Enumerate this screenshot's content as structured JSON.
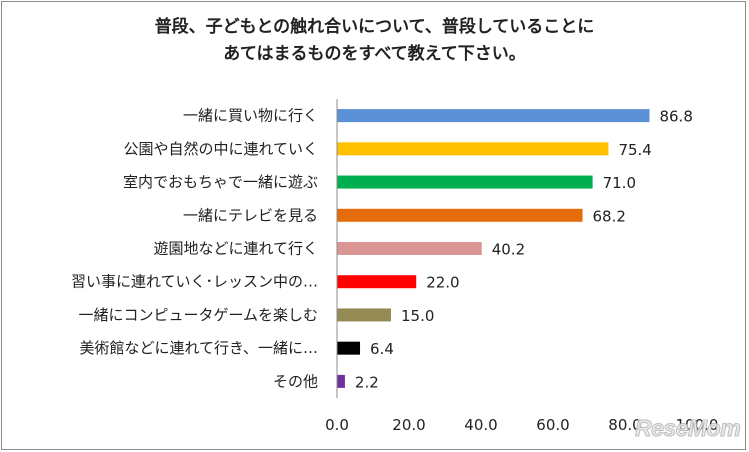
{
  "chart_data": {
    "type": "bar",
    "orientation": "horizontal",
    "title_lines": [
      "普段、子どもとの触れ合いについて、普段していることに",
      "あてはまるものをすべて教えて下さい。"
    ],
    "categories": [
      "一緒に買い物に行く",
      "公園や自然の中に連れていく",
      "室内でおもちゃで一緒に遊ぶ",
      "一緒にテレビを見る",
      "遊園地などに連れて行く",
      "習い事に連れていく･レッスン中の…",
      "一緒にコンピュータゲームを楽しむ",
      "美術館などに連れて行き、一緒に…",
      "その他"
    ],
    "values": [
      86.8,
      75.4,
      71.0,
      68.2,
      40.2,
      22.0,
      15.0,
      6.4,
      2.2
    ],
    "value_labels": [
      "86.8",
      "75.4",
      "71.0",
      "68.2",
      "40.2",
      "22.0",
      "15.0",
      "6.4",
      "2.2"
    ],
    "colors": [
      "#5b8fd6",
      "#ffc000",
      "#00b050",
      "#e46c0a",
      "#d99694",
      "#ff0000",
      "#948a54",
      "#000000",
      "#7030a0"
    ],
    "xlim": [
      0,
      100
    ],
    "xticks": [
      0,
      20,
      40,
      60,
      80,
      100
    ],
    "xtick_labels": [
      "0.0",
      "20.0",
      "40.0",
      "60.0",
      "80.0",
      "100.0"
    ],
    "xlabel": "",
    "ylabel": "",
    "grid": false,
    "legend": "none"
  },
  "watermark": "ReseMom"
}
